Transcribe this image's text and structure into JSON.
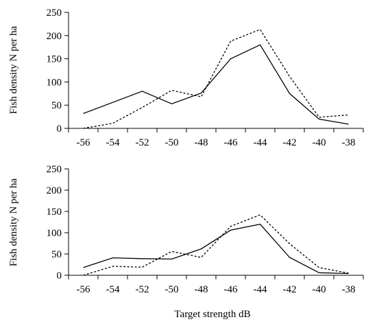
{
  "chart_data": [
    {
      "type": "line",
      "title": "",
      "ylabel": "Fish density N per ha",
      "xlabel": "",
      "ylim": [
        0,
        250
      ],
      "yticks": [
        0,
        50,
        100,
        150,
        200,
        250
      ],
      "xticks": [
        -56,
        -54,
        -52,
        -50,
        -48,
        -46,
        -44,
        -42,
        -40,
        -38
      ],
      "grid": false,
      "series": [
        {
          "style": "solid",
          "x": [
            -56,
            -52,
            -50,
            -48,
            -46,
            -44,
            -42,
            -40,
            -38
          ],
          "y": [
            32,
            80,
            53,
            76,
            150,
            180,
            75,
            20,
            9
          ]
        },
        {
          "style": "dashed",
          "x": [
            -56,
            -54,
            -52,
            -50,
            -48,
            -46,
            -44,
            -42,
            -40,
            -38
          ],
          "y": [
            0,
            11,
            45,
            82,
            68,
            188,
            213,
            112,
            24,
            29
          ]
        }
      ]
    },
    {
      "type": "line",
      "title": "",
      "ylabel": "Fish density N per ha",
      "xlabel": "Target strength  dB",
      "ylim": [
        0,
        250
      ],
      "yticks": [
        0,
        50,
        100,
        150,
        200,
        250
      ],
      "xticks": [
        -56,
        -54,
        -52,
        -50,
        -48,
        -46,
        -44,
        -42,
        -40,
        -38
      ],
      "grid": false,
      "series": [
        {
          "style": "solid",
          "x": [
            -56,
            -54,
            -52,
            -50,
            -48,
            -46,
            -44,
            -42,
            -40,
            -38
          ],
          "y": [
            18,
            41,
            39,
            38,
            62,
            106,
            120,
            42,
            6,
            4
          ]
        },
        {
          "style": "dashed",
          "x": [
            -56,
            -54,
            -52,
            -50,
            -48,
            -46,
            -44,
            -42,
            -40,
            -38
          ],
          "y": [
            0,
            21,
            19,
            56,
            42,
            115,
            142,
            74,
            18,
            5
          ]
        }
      ]
    }
  ]
}
